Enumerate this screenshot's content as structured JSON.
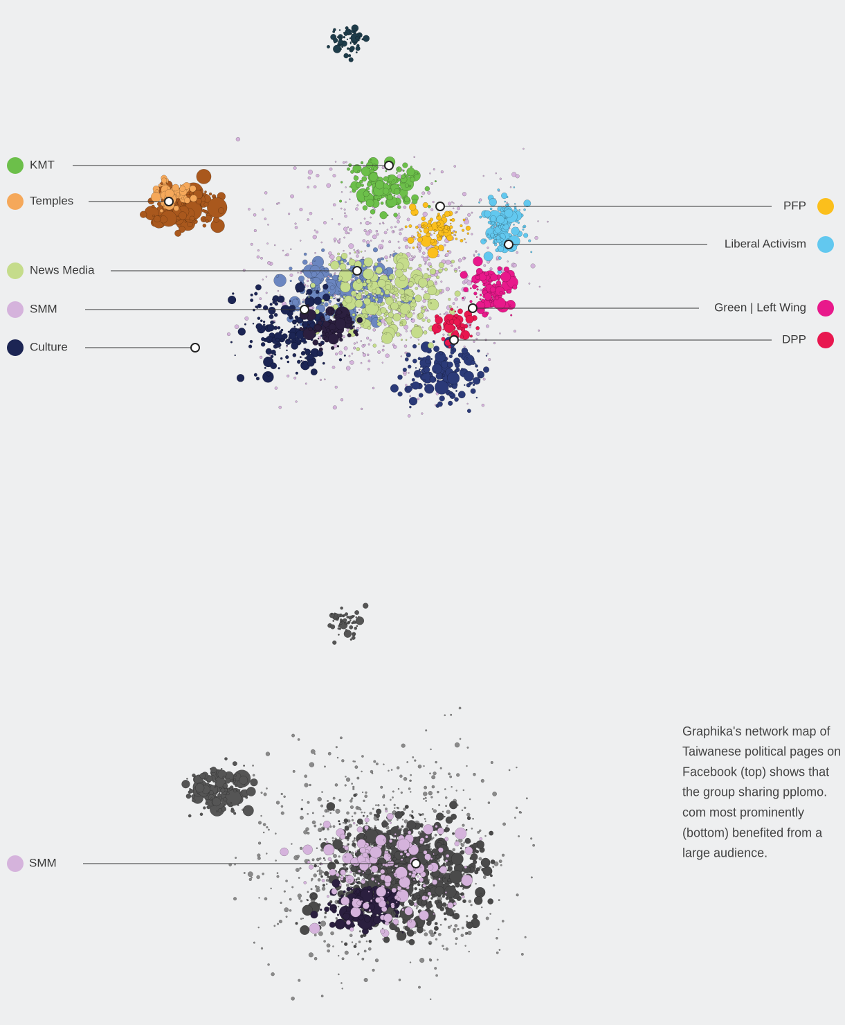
{
  "top_map": {
    "legend_left": [
      {
        "label": "KMT",
        "color": "#6cbf4a"
      },
      {
        "label": "Temples",
        "color": "#f5a85a"
      },
      {
        "label": "News Media",
        "color": "#c5dc8b"
      },
      {
        "label": "SMM",
        "color": "#d5b3dc"
      },
      {
        "label": "Culture",
        "color": "#1c2554"
      }
    ],
    "legend_right": [
      {
        "label": "PFP",
        "color": "#fbbf1c"
      },
      {
        "label": "Liberal Activism",
        "color": "#62c8ef"
      },
      {
        "label": "Green | Left Wing",
        "color": "#e8198b"
      },
      {
        "label": "DPP",
        "color": "#e8174f"
      }
    ]
  },
  "bottom_map": {
    "legend_left": [
      {
        "label": "SMM",
        "color": "#d5b3dc"
      }
    ]
  },
  "caption": [
    "Graphika's network map of",
    "Taiwanese political pages on",
    "Facebook (top) shows that",
    "the group sharing pplomo.",
    "com most prominently",
    "(bottom) benefited from a",
    "large audience."
  ]
}
